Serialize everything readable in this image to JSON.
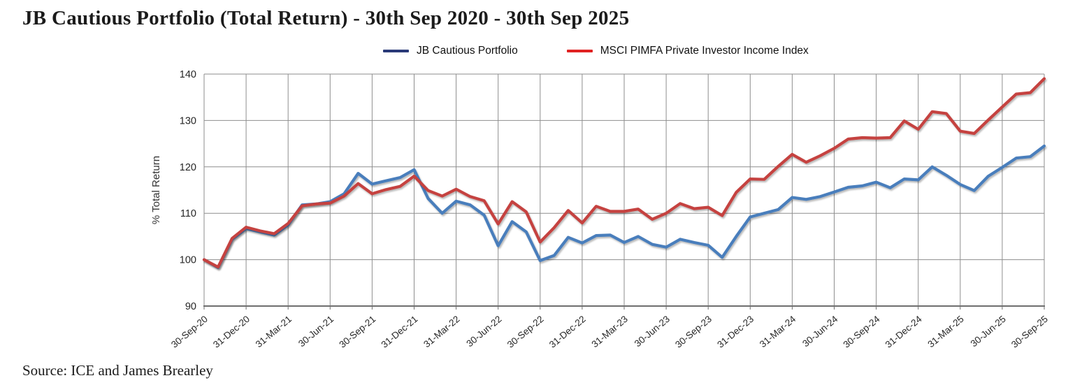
{
  "page": {
    "title": "JB Cautious Portfolio (Total Return) - 30th Sep 2020 - 30th Sep 2025",
    "source": "Source: ICE and James Brearley"
  },
  "legend": [
    {
      "label": "JB Cautious Portfolio",
      "swatch_color": "#2a3a78"
    },
    {
      "label": "MSCI PIMFA Private Investor Income Index",
      "swatch_color": "#e02222"
    }
  ],
  "chart_data": {
    "type": "line",
    "title": "JB Cautious Portfolio (Total Return) - 30th Sep 2020 - 30th Sep 2025",
    "xlabel": "",
    "ylabel": "% Total Return",
    "ylim": [
      90,
      140
    ],
    "y_ticks": [
      90,
      100,
      110,
      120,
      130,
      140
    ],
    "grid": true,
    "legend_position": "top-center",
    "x_frequency": "monthly",
    "points_per_tick_interval": 3,
    "x_tick_labels": [
      "30-Sep-20",
      "31-Dec-20",
      "31-Mar-21",
      "30-Jun-21",
      "30-Sep-21",
      "31-Dec-21",
      "31-Mar-22",
      "30-Jun-22",
      "30-Sep-22",
      "31-Dec-22",
      "31-Mar-23",
      "30-Jun-23",
      "30-Sep-23",
      "31-Dec-23",
      "31-Mar-24",
      "30-Jun-24",
      "30-Sep-24",
      "31-Dec-24",
      "31-Mar-25",
      "30-Jun-25",
      "30-Sep-25"
    ],
    "series": [
      {
        "id": "jb-cautious-portfolio",
        "name": "JB Cautious Portfolio",
        "color": "#4a7ebc",
        "values": [
          100.0,
          98.3,
          104.4,
          106.7,
          106.0,
          105.3,
          107.5,
          111.8,
          112.0,
          112.5,
          114.2,
          118.6,
          116.3,
          117.0,
          117.7,
          119.4,
          113.2,
          110.0,
          112.6,
          111.8,
          109.6,
          103.0,
          108.2,
          106.0,
          99.8,
          100.9,
          104.8,
          103.6,
          105.2,
          105.3,
          103.7,
          105.0,
          103.3,
          102.7,
          104.4,
          103.7,
          103.1,
          100.5,
          105.0,
          109.2,
          110.0,
          110.8,
          113.4,
          113.0,
          113.6,
          114.6,
          115.6,
          115.9,
          116.7,
          115.5,
          117.4,
          117.2,
          120.0,
          118.2,
          116.2,
          114.9,
          118.0,
          119.9,
          121.9,
          122.2,
          124.5
        ]
      },
      {
        "id": "msci-pimfa-private-investor-income-index",
        "name": "MSCI PIMFA Private Investor Income Index",
        "color": "#c5433f",
        "values": [
          100.0,
          98.4,
          104.6,
          107.0,
          106.2,
          105.6,
          107.8,
          111.6,
          112.0,
          112.2,
          113.7,
          116.4,
          114.2,
          115.1,
          115.8,
          118.0,
          114.9,
          113.7,
          115.2,
          113.6,
          112.7,
          107.7,
          112.5,
          110.3,
          103.8,
          106.9,
          110.6,
          107.9,
          111.5,
          110.4,
          110.4,
          110.9,
          108.7,
          110.0,
          112.1,
          111.0,
          111.3,
          109.5,
          114.5,
          117.4,
          117.3,
          120.1,
          122.7,
          121.0,
          122.4,
          124.0,
          126.0,
          126.3,
          126.2,
          126.3,
          129.9,
          128.1,
          131.9,
          131.5,
          127.7,
          127.2,
          130.1,
          132.9,
          135.7,
          136.0,
          139.0
        ]
      }
    ]
  }
}
